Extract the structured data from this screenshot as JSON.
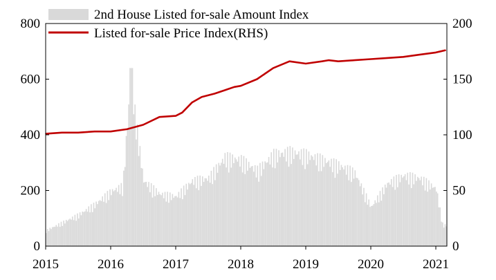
{
  "chart_data": {
    "type": "bar+line",
    "legend": [
      {
        "label": "2nd House Listed for-sale Amount Index",
        "kind": "bar",
        "color": "#d9d9d9"
      },
      {
        "label": "Listed for-sale Price Index(RHS)",
        "kind": "line",
        "color": "#c00000"
      }
    ],
    "legend_position": "top-left",
    "left_axis": {
      "ylim": [
        0,
        800
      ],
      "ticks": [
        0,
        200,
        400,
        600,
        800
      ]
    },
    "right_axis": {
      "ylim": [
        0,
        200
      ],
      "ticks": [
        0,
        50,
        100,
        150,
        200
      ]
    },
    "x_axis": {
      "range": [
        2015.0,
        2021.17
      ],
      "ticks": [
        2015,
        2016,
        2017,
        2018,
        2019,
        2020,
        2021
      ]
    },
    "series": [
      {
        "name": "2nd House Listed for-sale Amount Index",
        "type": "bar",
        "axis": "left",
        "x": [
          2015.0,
          2015.25,
          2015.5,
          2015.75,
          2016.0,
          2016.18,
          2016.3,
          2016.5,
          2016.75,
          2017.0,
          2017.25,
          2017.5,
          2017.75,
          2018.0,
          2018.25,
          2018.5,
          2018.75,
          2019.0,
          2019.25,
          2019.5,
          2019.75,
          2020.0,
          2020.25,
          2020.5,
          2020.75,
          2021.0,
          2021.1
        ],
        "values": [
          60,
          90,
          120,
          160,
          210,
          230,
          640,
          250,
          200,
          190,
          250,
          260,
          340,
          330,
          290,
          350,
          360,
          350,
          330,
          310,
          280,
          150,
          240,
          270,
          260,
          220,
          80
        ]
      },
      {
        "name": "Listed for-sale Price Index(RHS)",
        "type": "line",
        "axis": "right",
        "x": [
          2015.0,
          2015.25,
          2015.5,
          2015.75,
          2016.0,
          2016.25,
          2016.5,
          2016.75,
          2017.0,
          2017.1,
          2017.25,
          2017.4,
          2017.6,
          2017.75,
          2017.9,
          2018.0,
          2018.25,
          2018.5,
          2018.75,
          2019.0,
          2019.25,
          2019.35,
          2019.5,
          2019.75,
          2020.0,
          2020.25,
          2020.5,
          2020.75,
          2021.0,
          2021.15
        ],
        "values": [
          101,
          102,
          102,
          103,
          103,
          105,
          109,
          116,
          117,
          120,
          129,
          134,
          137,
          140,
          143,
          144,
          150,
          160,
          166,
          164,
          166,
          167,
          166,
          167,
          168,
          169,
          170,
          172,
          174,
          176
        ]
      }
    ]
  }
}
